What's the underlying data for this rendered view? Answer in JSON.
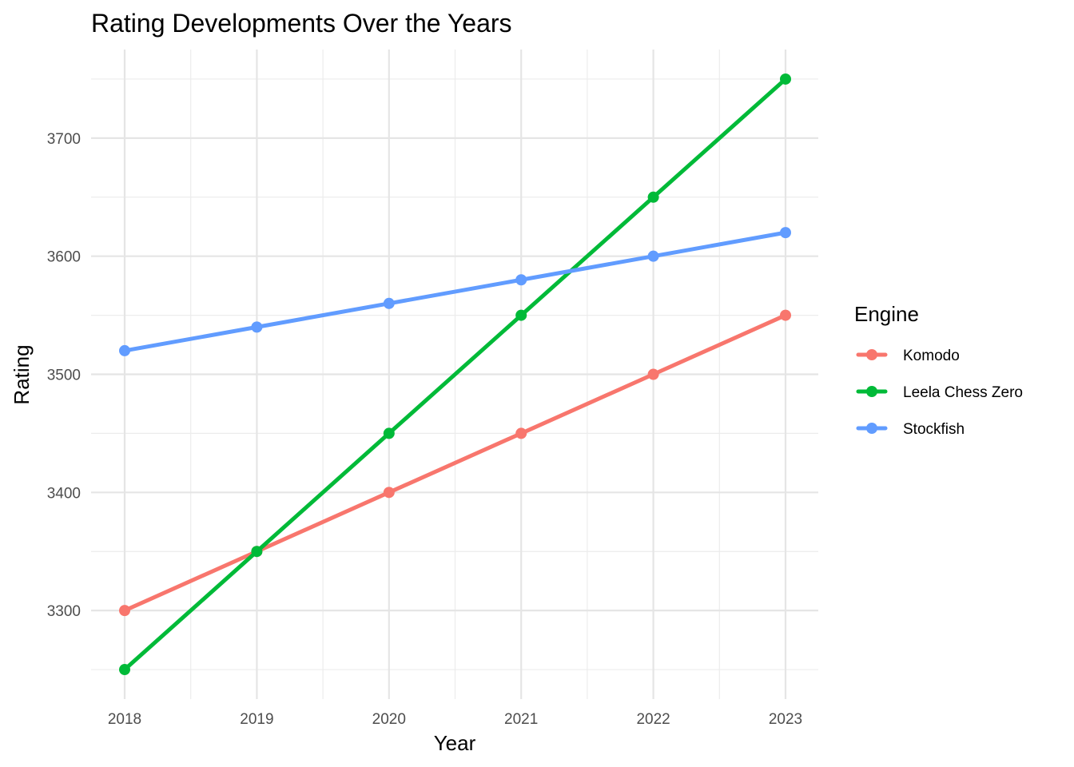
{
  "chart_data": {
    "type": "line",
    "title": "Rating Developments Over the Years",
    "xlabel": "Year",
    "ylabel": "Rating",
    "x": [
      2018,
      2019,
      2020,
      2021,
      2022,
      2023
    ],
    "x_ticks": [
      "2018",
      "2019",
      "2020",
      "2021",
      "2022",
      "2023"
    ],
    "y_ticks": [
      "3300",
      "3400",
      "3500",
      "3600",
      "3700"
    ],
    "ylim": [
      3225,
      3775
    ],
    "grid": true,
    "legend": {
      "title": "Engine",
      "position": "right"
    },
    "series": [
      {
        "name": "Komodo",
        "color": "#F8766D",
        "values": [
          3300,
          3350,
          3400,
          3450,
          3500,
          3550
        ]
      },
      {
        "name": "Leela Chess Zero",
        "color": "#00BA38",
        "values": [
          3250,
          3350,
          3450,
          3550,
          3650,
          3750
        ]
      },
      {
        "name": "Stockfish",
        "color": "#619CFF",
        "values": [
          3520,
          3540,
          3560,
          3580,
          3600,
          3620
        ]
      }
    ]
  }
}
